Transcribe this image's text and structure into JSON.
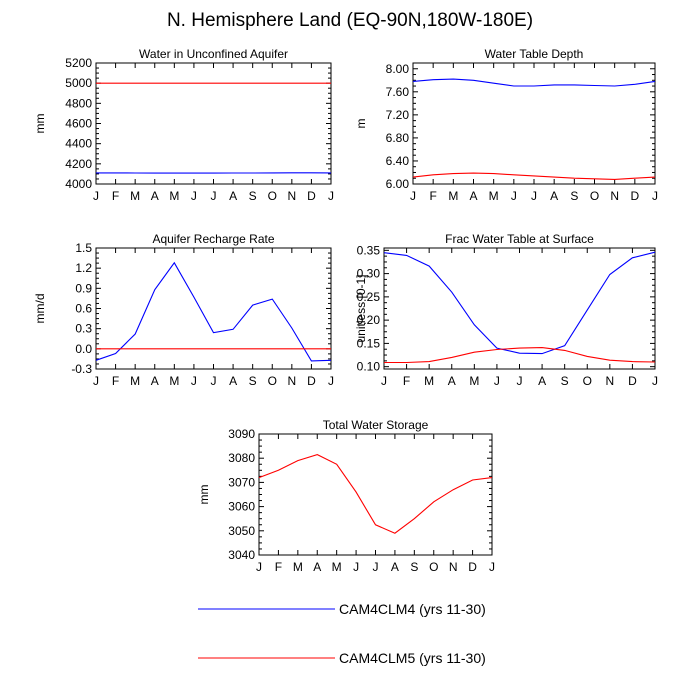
{
  "title": "N. Hemisphere Land (EQ-90N,180W-180E)",
  "legend": [
    {
      "label": "CAM4CLM4 (yrs 11-30)",
      "color": "#0000ff"
    },
    {
      "label": "CAM4CLM5 (yrs 11-30)",
      "color": "#ff0000"
    }
  ],
  "chart_data": [
    {
      "type": "line",
      "title": "Water in Unconfined Aquifer",
      "xlabel": "",
      "ylabel": "mm",
      "categories": [
        "J",
        "F",
        "M",
        "A",
        "M",
        "J",
        "J",
        "A",
        "S",
        "O",
        "N",
        "D",
        "J"
      ],
      "ylim": [
        4000,
        5200
      ],
      "yticks": [
        4000,
        4200,
        4400,
        4600,
        4800,
        5000,
        5200
      ],
      "yticklabels": [
        "4000",
        "4200",
        "4400",
        "4600",
        "4800",
        "5000",
        "5200"
      ],
      "series": [
        {
          "name": "CAM4CLM4 (yrs 11-30)",
          "color": "#0000ff",
          "values": [
            4110,
            4110,
            4109,
            4108,
            4108,
            4108,
            4108,
            4109,
            4109,
            4110,
            4111,
            4111,
            4110
          ]
        },
        {
          "name": "CAM4CLM5 (yrs 11-30)",
          "color": "#ff0000",
          "values": [
            5000,
            5000,
            5000,
            5000,
            5000,
            5000,
            5000,
            5000,
            5000,
            5000,
            5000,
            5000,
            5000
          ]
        }
      ]
    },
    {
      "type": "line",
      "title": "Water Table Depth",
      "xlabel": "",
      "ylabel": "m",
      "categories": [
        "J",
        "F",
        "M",
        "A",
        "M",
        "J",
        "J",
        "A",
        "S",
        "O",
        "N",
        "D",
        "J"
      ],
      "ylim": [
        6.0,
        8.1
      ],
      "yticks": [
        6.0,
        6.4,
        6.8,
        7.2,
        7.6,
        8.0
      ],
      "yticklabels": [
        "6.00",
        "6.40",
        "6.80",
        "7.20",
        "7.60",
        "8.00"
      ],
      "series": [
        {
          "name": "CAM4CLM4 (yrs 11-30)",
          "color": "#0000ff",
          "values": [
            7.78,
            7.81,
            7.82,
            7.8,
            7.75,
            7.7,
            7.7,
            7.72,
            7.72,
            7.71,
            7.7,
            7.73,
            7.78
          ]
        },
        {
          "name": "CAM4CLM5 (yrs 11-30)",
          "color": "#ff0000",
          "values": [
            6.12,
            6.16,
            6.18,
            6.19,
            6.18,
            6.16,
            6.14,
            6.12,
            6.1,
            6.09,
            6.08,
            6.1,
            6.12
          ]
        }
      ]
    },
    {
      "type": "line",
      "title": "Aquifer Recharge Rate",
      "xlabel": "",
      "ylabel": "mm/d",
      "categories": [
        "J",
        "F",
        "M",
        "A",
        "M",
        "J",
        "J",
        "A",
        "S",
        "O",
        "N",
        "D",
        "J"
      ],
      "ylim": [
        -0.3,
        1.5
      ],
      "yticks": [
        -0.3,
        0.0,
        0.3,
        0.6,
        0.9,
        1.2,
        1.5
      ],
      "yticklabels": [
        "-0.3",
        "0.0",
        "0.3",
        "0.6",
        "0.9",
        "1.2",
        "1.5"
      ],
      "series": [
        {
          "name": "CAM4CLM4 (yrs 11-30)",
          "color": "#0000ff",
          "values": [
            -0.17,
            -0.07,
            0.22,
            0.88,
            1.28,
            0.77,
            0.24,
            0.29,
            0.65,
            0.74,
            0.31,
            -0.18,
            -0.17
          ]
        },
        {
          "name": "CAM4CLM5 (yrs 11-30)",
          "color": "#ff0000",
          "values": [
            0.0,
            0.0,
            0.0,
            0.0,
            0.0,
            0.0,
            0.0,
            0.0,
            0.0,
            0.0,
            0.0,
            0.0,
            0.0
          ]
        }
      ]
    },
    {
      "type": "line",
      "title": "Frac Water Table at Surface",
      "xlabel": "",
      "ylabel": "unitless [0-1]",
      "categories": [
        "J",
        "F",
        "M",
        "A",
        "M",
        "J",
        "J",
        "A",
        "S",
        "O",
        "N",
        "D",
        "J"
      ],
      "ylim": [
        0.095,
        0.355
      ],
      "yticks": [
        0.1,
        0.15,
        0.2,
        0.25,
        0.3,
        0.35
      ],
      "yticklabels": [
        "0.10",
        "0.15",
        "0.20",
        "0.25",
        "0.30",
        "0.35"
      ],
      "series": [
        {
          "name": "CAM4CLM4 (yrs 11-30)",
          "color": "#0000ff",
          "values": [
            0.345,
            0.339,
            0.316,
            0.26,
            0.19,
            0.14,
            0.129,
            0.128,
            0.145,
            0.222,
            0.298,
            0.334,
            0.346
          ]
        },
        {
          "name": "CAM4CLM5 (yrs 11-30)",
          "color": "#ff0000",
          "values": [
            0.109,
            0.109,
            0.111,
            0.12,
            0.131,
            0.137,
            0.14,
            0.141,
            0.135,
            0.122,
            0.114,
            0.111,
            0.11
          ]
        }
      ]
    },
    {
      "type": "line",
      "title": "Total Water Storage",
      "xlabel": "",
      "ylabel": "mm",
      "categories": [
        "J",
        "F",
        "M",
        "A",
        "M",
        "J",
        "J",
        "A",
        "S",
        "O",
        "N",
        "D",
        "J"
      ],
      "ylim": [
        3040,
        3090
      ],
      "yticks": [
        3040,
        3050,
        3060,
        3070,
        3080,
        3090
      ],
      "yticklabels": [
        "3040",
        "3050",
        "3060",
        "3070",
        "3080",
        "3090"
      ],
      "series": [
        {
          "name": "CAM4CLM5 (yrs 11-30)",
          "color": "#ff0000",
          "values": [
            3072,
            3075,
            3079,
            3081.5,
            3077.5,
            3066,
            3052.5,
            3049,
            3055,
            3062,
            3067,
            3071,
            3072
          ]
        }
      ]
    }
  ]
}
